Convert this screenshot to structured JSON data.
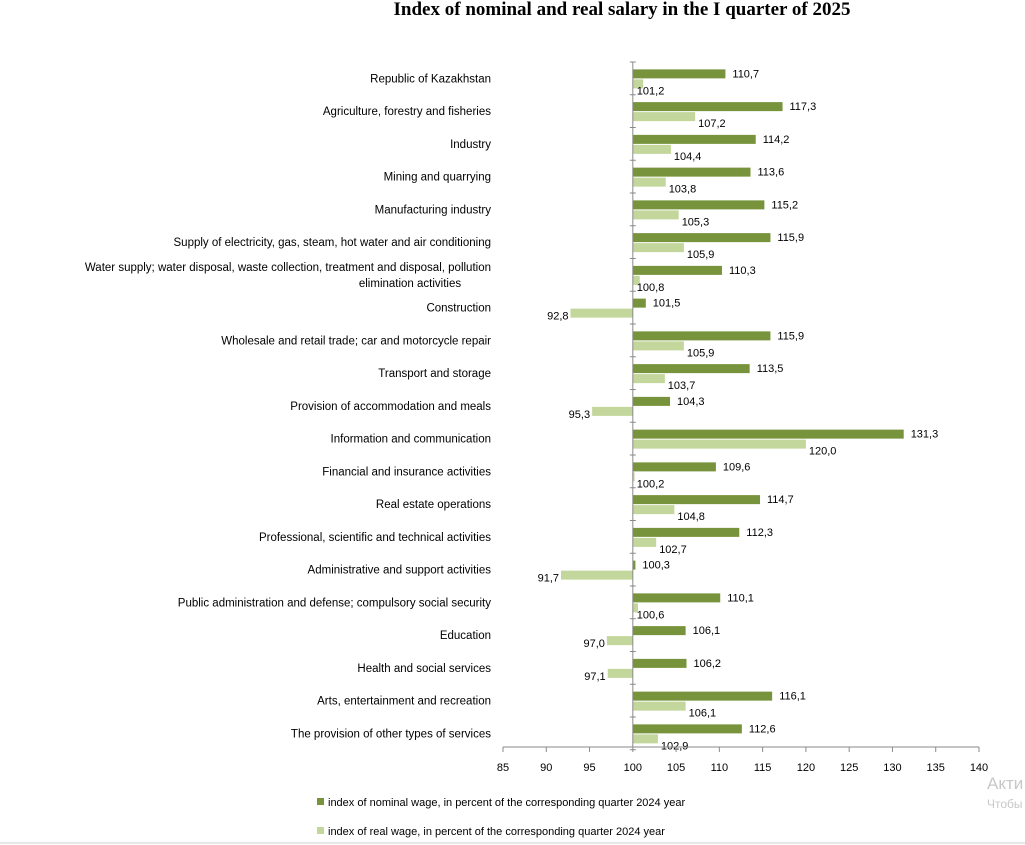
{
  "chart_data": {
    "type": "bar",
    "orientation": "horizontal",
    "title": "Index of nominal and real salary in the I quarter of 2025",
    "categories": [
      "Republic of Kazakhstan",
      "Agriculture, forestry and fisheries",
      "Industry",
      "Mining and quarrying",
      "Manufacturing industry",
      "Supply of electricity, gas, steam, hot water and air conditioning",
      "Water supply;  water disposal, waste collection, treatment and disposal, pollution elimination activities",
      "Construction",
      "Wholesale and retail trade; car and motorcycle repair",
      "Transport and storage",
      "Provision of accommodation and meals",
      "Information and communication",
      "Financial and insurance activities",
      "Real estate operations",
      "Professional, scientific and technical activities",
      "Administrative and support activities",
      "Public administration and defense; compulsory social security",
      "Education",
      "Health and social services",
      "Arts, entertainment and recreation",
      "The provision of other types of services"
    ],
    "category_lines": [
      [
        "Republic of Kazakhstan"
      ],
      [
        "Agriculture, forestry and fisheries"
      ],
      [
        "Industry"
      ],
      [
        "Mining and quarrying"
      ],
      [
        "Manufacturing industry"
      ],
      [
        "Supply of electricity, gas, steam, hot water and air conditioning"
      ],
      [
        "Water supply;  water disposal, waste collection, treatment and disposal, pollution",
        "elimination activities"
      ],
      [
        "Construction"
      ],
      [
        "Wholesale and retail trade; car and motorcycle repair"
      ],
      [
        "Transport and storage"
      ],
      [
        "Provision of accommodation and meals"
      ],
      [
        "Information and communication"
      ],
      [
        "Financial and insurance activities"
      ],
      [
        "Real estate operations"
      ],
      [
        "Professional, scientific and technical activities"
      ],
      [
        "Administrative and support activities"
      ],
      [
        "Public administration and defense; compulsory social security"
      ],
      [
        "Education"
      ],
      [
        "Health and social services"
      ],
      [
        "Arts, entertainment and recreation"
      ],
      [
        "The provision of other types of services"
      ]
    ],
    "series": [
      {
        "name": "index of nominal wage, in percent of the corresponding quarter 2024 year",
        "color": "#77933c",
        "values": [
          110.7,
          117.3,
          114.2,
          113.6,
          115.2,
          115.9,
          110.3,
          101.5,
          115.9,
          113.5,
          104.3,
          131.3,
          109.6,
          114.7,
          112.3,
          100.3,
          110.1,
          106.1,
          106.2,
          116.1,
          112.6
        ],
        "labels": [
          "110,7",
          "117,3",
          "114,2",
          "113,6",
          "115,2",
          "115,9",
          "110,3",
          "101,5",
          "115,9",
          "113,5",
          "104,3",
          "131,3",
          "109,6",
          "114,7",
          "112,3",
          "100,3",
          "110,1",
          "106,1",
          "106,2",
          "116,1",
          "112,6"
        ]
      },
      {
        "name": "index of real wage, in percent of the corresponding quarter 2024 year",
        "color": "#c3d69b",
        "values": [
          101.2,
          107.2,
          104.4,
          103.8,
          105.3,
          105.9,
          100.8,
          92.8,
          105.9,
          103.7,
          95.3,
          120.0,
          100.2,
          104.8,
          102.7,
          91.7,
          100.6,
          97.0,
          97.1,
          106.1,
          102.9
        ],
        "labels": [
          "101,2",
          "107,2",
          "104,4",
          "103,8",
          "105,3",
          "105,9",
          "100,8",
          "92,8",
          "105,9",
          "103,7",
          "95,3",
          "120,0",
          "100,2",
          "104,8",
          "102,7",
          "91,7",
          "100,6",
          "97,0",
          "97,1",
          "106,1",
          "102,9"
        ]
      }
    ],
    "xlim": [
      85,
      140
    ],
    "baseline": 100,
    "xticks": [
      85,
      90,
      95,
      100,
      105,
      110,
      115,
      120,
      125,
      130,
      135,
      140
    ],
    "legend_position": "bottom-left",
    "grid": false
  },
  "watermark": {
    "line1": "Акти",
    "line2": "Чтобы"
  }
}
